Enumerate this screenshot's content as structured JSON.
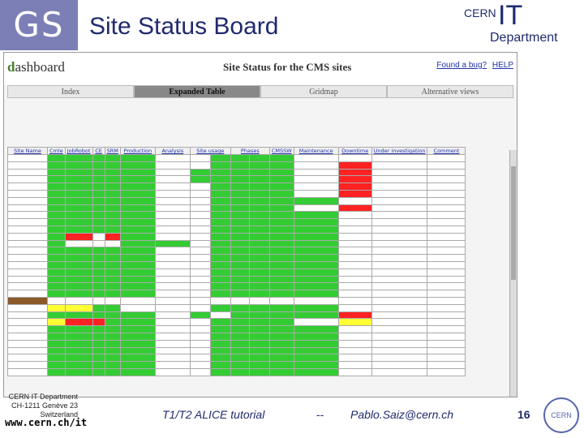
{
  "slide": {
    "logo": "GS",
    "title": "Site Status Board",
    "cern_it": {
      "cern": "CERN",
      "it": "IT",
      "dept": "Department"
    },
    "footer": {
      "address": [
        "CERN IT Department",
        "CH-1211 Genève 23",
        "Switzerland"
      ],
      "url": "www.cern.ch/it",
      "talk": "T1/T2 ALICE tutorial",
      "sep": "--",
      "email": "Pablo.Saiz@cern.ch",
      "page": "16",
      "cern_logo": "CERN"
    }
  },
  "dashboard": {
    "logo_a": "d",
    "logo_b": "ashboard",
    "title": "Site Status for the CMS sites",
    "links": [
      "Found a bug?",
      "HELP"
    ],
    "tabs": [
      {
        "label": "Index",
        "active": false
      },
      {
        "label": "Expanded Table",
        "active": true
      },
      {
        "label": "Gridmap",
        "active": false
      },
      {
        "label": "Alternative views",
        "active": false
      }
    ],
    "headers": [
      "Site Name",
      "Cmle",
      "JobRobot",
      "SAM",
      "CE",
      "SRM",
      "Production",
      "Analysis",
      "Site usage",
      "Phases",
      "CMSSW",
      "Maintenance",
      "Downtime",
      "Under investigation",
      "Comment"
    ]
  },
  "colors": {
    "green": "#33cc33",
    "red": "#ff2222",
    "yellow": "#ffff33",
    "brown": "#8a5a2a"
  }
}
